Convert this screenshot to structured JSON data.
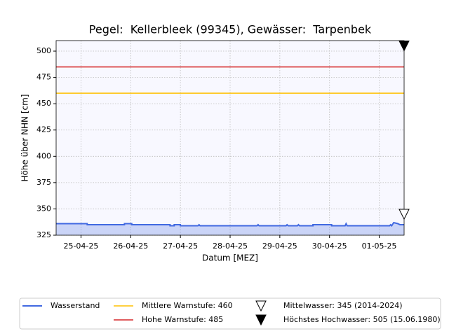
{
  "chart_data": {
    "type": "line",
    "title": "Pegel:  Kellerbleek (99345), Gewässer:  Tarpenbek",
    "xlabel": "Datum [MEZ]",
    "ylabel": "Höhe über NHN [cm]",
    "x": [
      "2025-04-24T12:00",
      "2025-04-25T03:00",
      "2025-04-25T03:00",
      "2025-04-25T21:00",
      "2025-04-25T21:00",
      "2025-04-26T00:30",
      "2025-04-26T00:30",
      "2025-04-26T19:00",
      "2025-04-26T19:00",
      "2025-04-26T21:00",
      "2025-04-26T21:00",
      "2025-04-27T00:00",
      "2025-04-27T00:00",
      "2025-04-27T08:30",
      "2025-04-27T09:00",
      "2025-04-27T09:30",
      "2025-04-28T13:00",
      "2025-04-28T13:30",
      "2025-04-28T14:00",
      "2025-04-29T03:00",
      "2025-04-29T03:30",
      "2025-04-29T04:00",
      "2025-04-29T08:30",
      "2025-04-29T09:00",
      "2025-04-29T09:30",
      "2025-04-29T16:00",
      "2025-04-29T16:00",
      "2025-04-30T01:00",
      "2025-04-30T01:00",
      "2025-04-30T07:30",
      "2025-04-30T08:00",
      "2025-04-30T08:30",
      "2025-05-01T05:00",
      "2025-05-01T05:30",
      "2025-05-01T06:00",
      "2025-05-01T07:00",
      "2025-05-01T09:00",
      "2025-05-01T10:00",
      "2025-05-01T12:00"
    ],
    "series": [
      {
        "name": "Wasserstand",
        "color": "#4169e1",
        "values": [
          336,
          336,
          335,
          335,
          336,
          336,
          335,
          335,
          334,
          334,
          335,
          335,
          334,
          334,
          335,
          334,
          334,
          335,
          334,
          334,
          335,
          334,
          334,
          335,
          334,
          334,
          335,
          335,
          334,
          334,
          336,
          334,
          334,
          335,
          334,
          337,
          336,
          335,
          335
        ]
      }
    ],
    "hlines": [
      {
        "name": "Mittlere Warnstufe: 460",
        "value": 460,
        "color": "#ffc000"
      },
      {
        "name": "Hohe Warnstufe: 485",
        "value": 485,
        "color": "#d62728"
      }
    ],
    "markers": [
      {
        "name": "Mittelwasser: 345 (2014-2024)",
        "value": 345,
        "filled": false
      },
      {
        "name": "Höchstes Hochwasser: 505 (15.06.1980)",
        "value": 505,
        "filled": true
      }
    ],
    "xlim": [
      "2025-04-24T12:00",
      "2025-05-01T12:00"
    ],
    "xticks": [
      {
        "value": "2025-04-25T00:00",
        "label": "25-04-25"
      },
      {
        "value": "2025-04-26T00:00",
        "label": "26-04-25"
      },
      {
        "value": "2025-04-27T00:00",
        "label": "27-04-25"
      },
      {
        "value": "2025-04-28T00:00",
        "label": "28-04-25"
      },
      {
        "value": "2025-04-29T00:00",
        "label": "29-04-25"
      },
      {
        "value": "2025-04-30T00:00",
        "label": "30-04-25"
      },
      {
        "value": "2025-05-01T00:00",
        "label": "01-05-25"
      }
    ],
    "ylim": [
      325,
      510
    ],
    "yticks": [
      325,
      350,
      375,
      400,
      425,
      450,
      475,
      500
    ],
    "grid": true
  }
}
